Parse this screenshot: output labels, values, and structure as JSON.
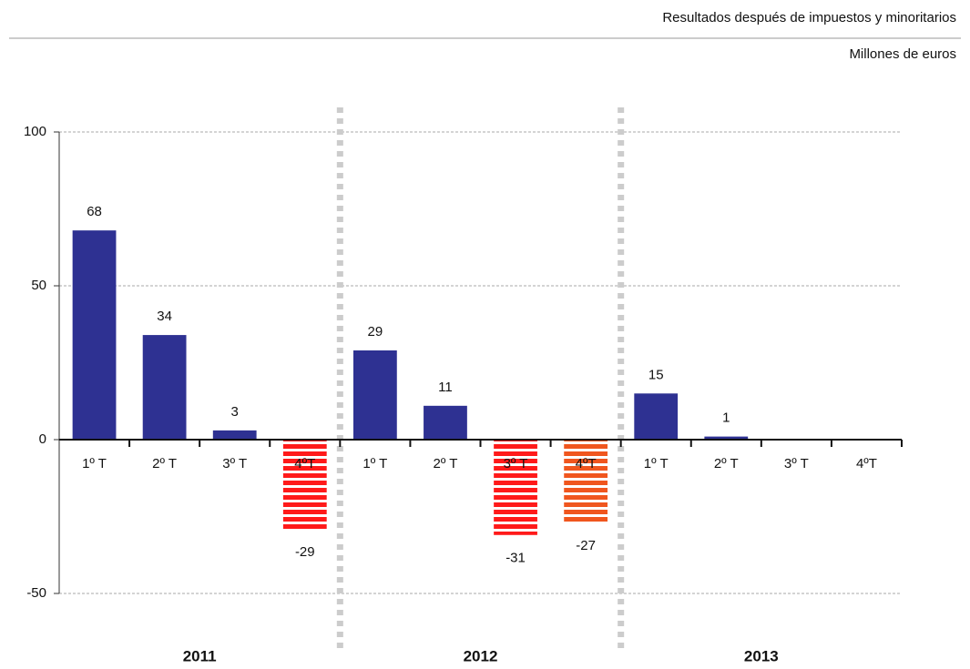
{
  "chart_data": {
    "type": "bar",
    "title": "Resultados después de impuestos y minoritarios",
    "subtitle": "Millones de euros",
    "categories": [
      "1º T",
      "2º T",
      "3º T",
      "4ºT",
      "1º T",
      "2º T",
      "3º T",
      "4ºT",
      "1º T",
      "2º T",
      "3º T",
      "4ºT"
    ],
    "values": [
      68,
      34,
      3,
      -29,
      29,
      11,
      -31,
      -27,
      15,
      1,
      null,
      null
    ],
    "colors": [
      "#2e3192",
      "#2e3192",
      "#2e3192",
      "#ff1a1a",
      "#2e3192",
      "#2e3192",
      "#ff1a1a",
      "#f0561e",
      "#2e3192",
      "#2e3192",
      "#2e3192",
      "#2e3192"
    ],
    "groups": [
      "2011",
      "2012",
      "2013"
    ],
    "ylim": [
      -50,
      100
    ],
    "yticks": [
      -50,
      0,
      50,
      100
    ],
    "grid": true
  }
}
